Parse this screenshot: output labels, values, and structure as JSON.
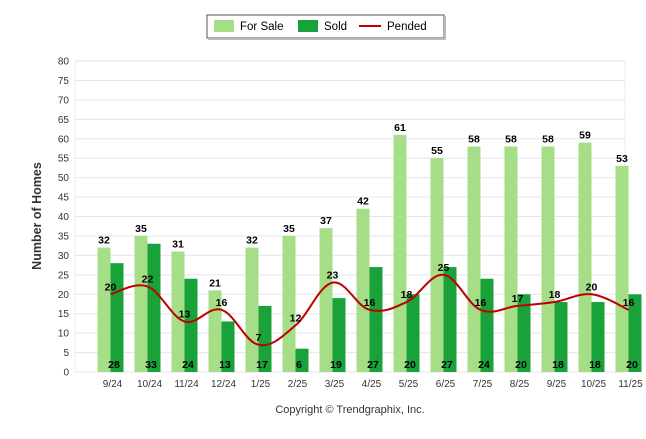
{
  "chart_data": {
    "type": "bar",
    "title": "",
    "xlabel": "",
    "ylabel": "Number of Homes",
    "ylim": [
      0,
      80
    ],
    "ytick_step": 5,
    "grid": true,
    "legend_position": "top-center",
    "categories": [
      "9/24",
      "10/24",
      "11/24",
      "12/24",
      "1/25",
      "2/25",
      "3/25",
      "4/25",
      "5/25",
      "6/25",
      "7/25",
      "8/25",
      "9/25",
      "10/25",
      "11/25"
    ],
    "series": [
      {
        "name": "For Sale",
        "kind": "bar",
        "color": "#a6dd87",
        "values": [
          32,
          35,
          31,
          21,
          32,
          35,
          37,
          42,
          61,
          55,
          58,
          58,
          58,
          59,
          53
        ]
      },
      {
        "name": "Sold",
        "kind": "bar",
        "color": "#1aa23a",
        "values": [
          28,
          33,
          24,
          13,
          17,
          6,
          19,
          27,
          20,
          27,
          24,
          20,
          18,
          18,
          20
        ]
      },
      {
        "name": "Pended",
        "kind": "line",
        "color": "#c00000",
        "values": [
          20,
          22,
          13,
          16,
          7,
          12,
          23,
          16,
          18,
          25,
          16,
          17,
          18,
          20,
          16
        ]
      }
    ],
    "footer": "Copyright © Trendgraphix, Inc."
  }
}
